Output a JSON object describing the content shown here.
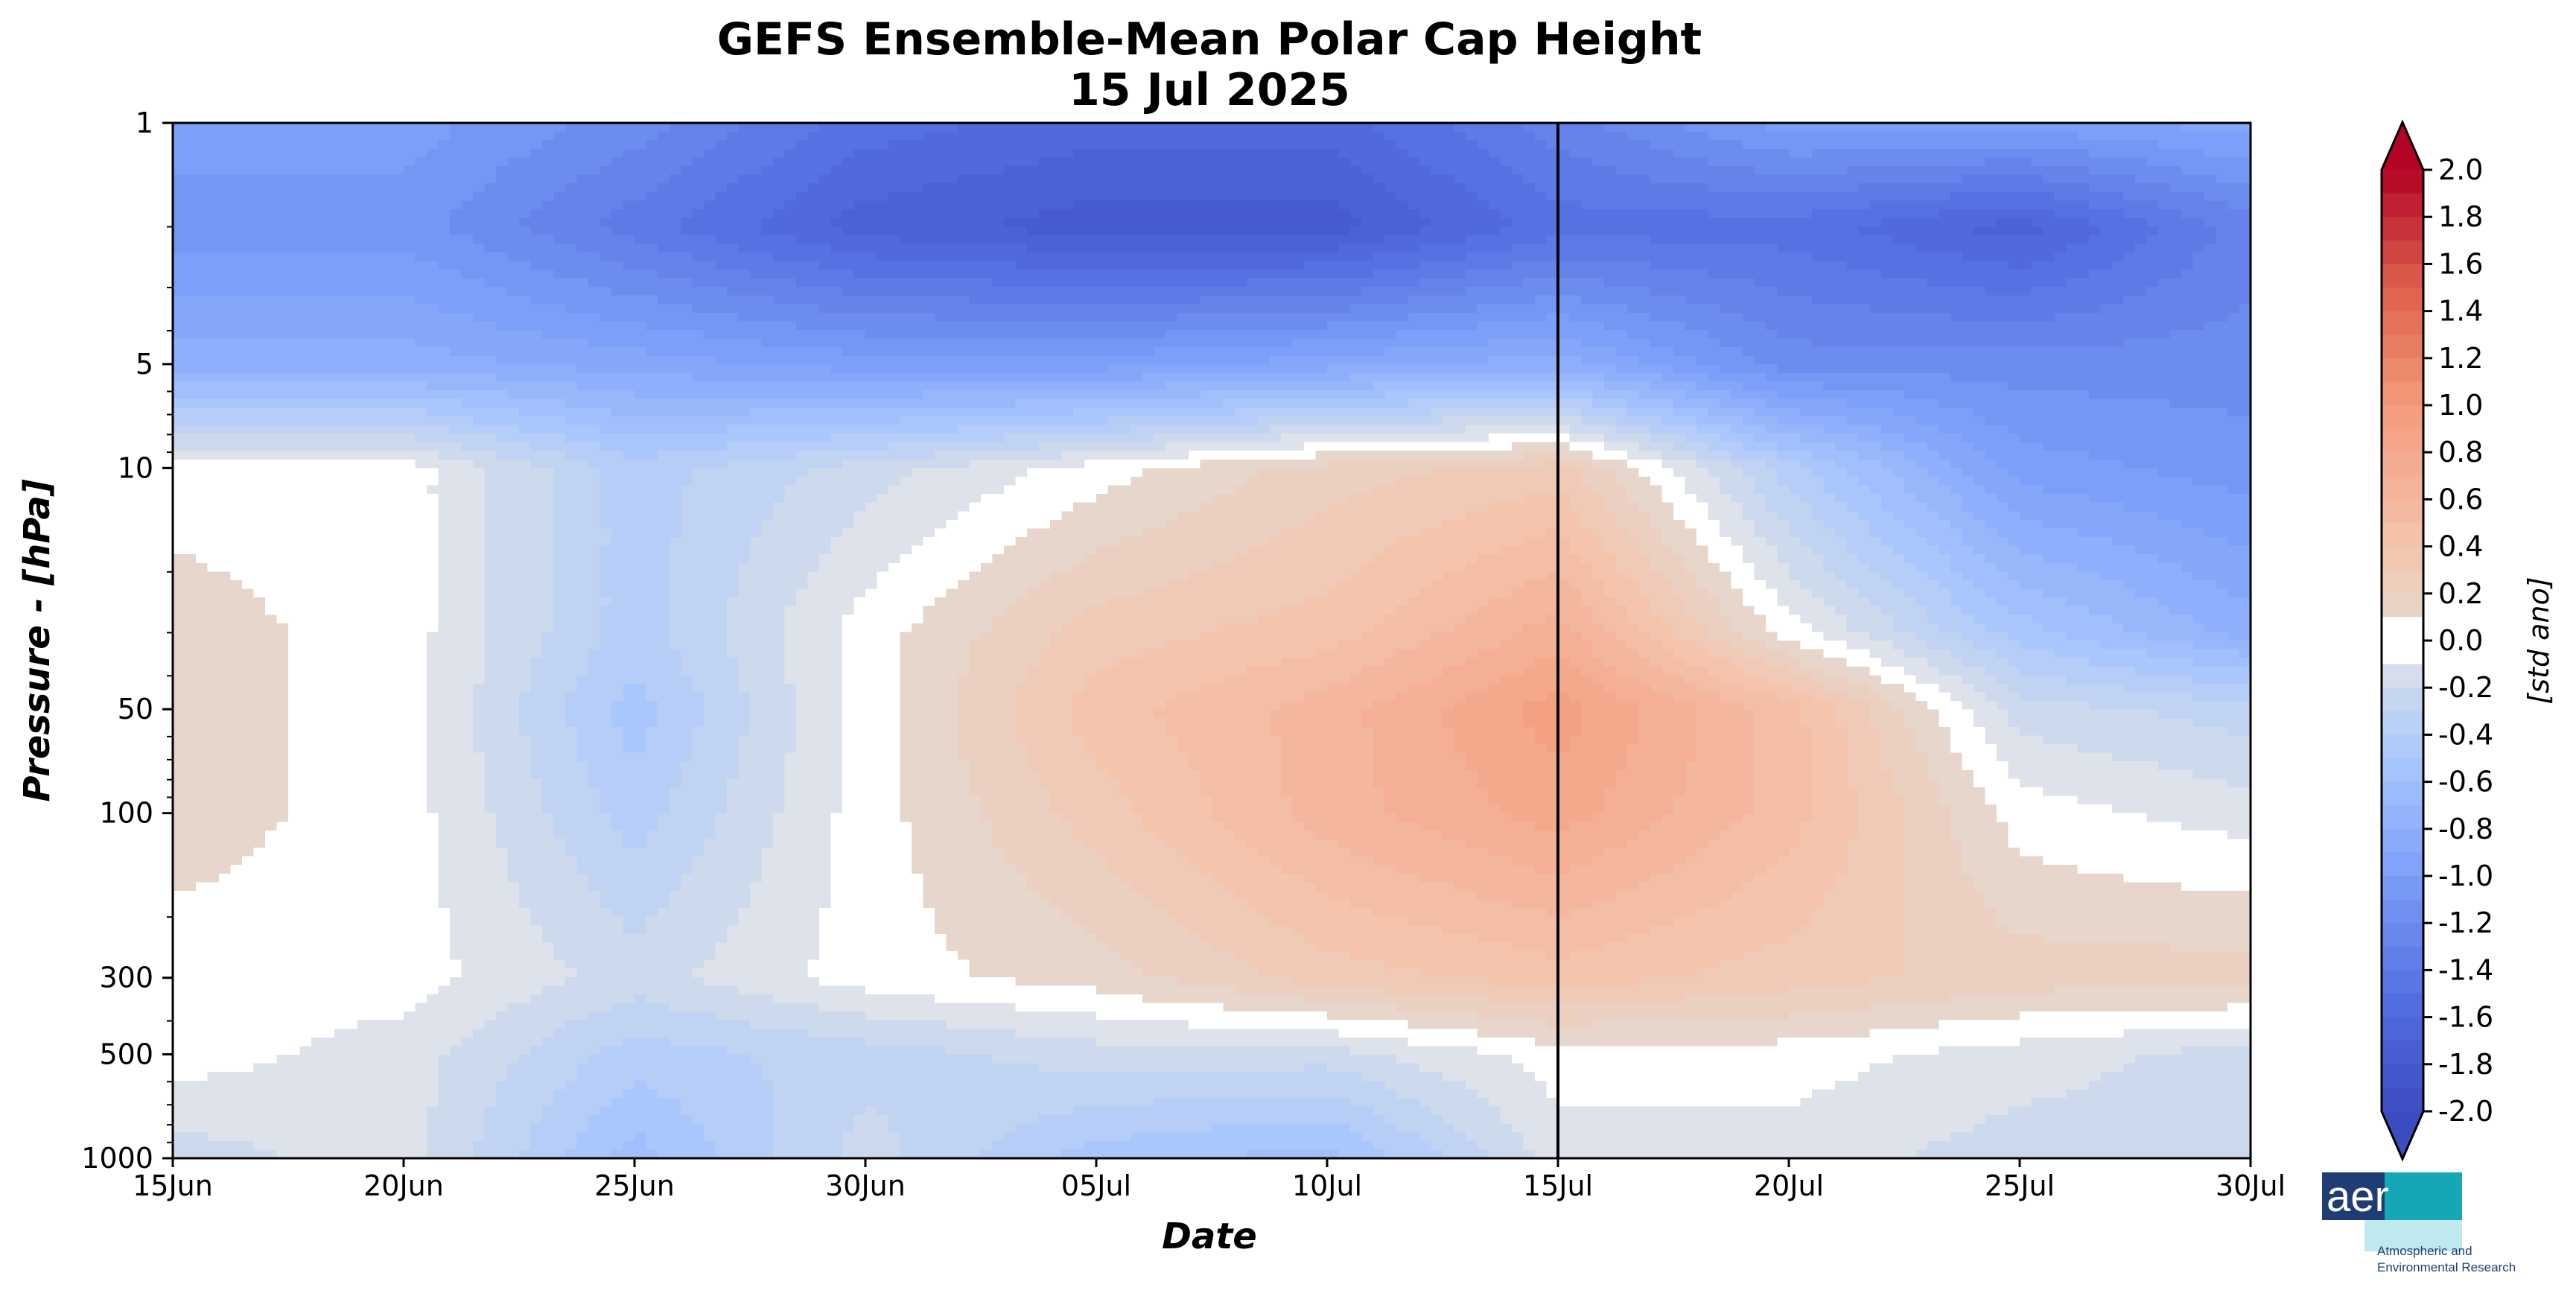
{
  "chart_data": {
    "type": "heatmap",
    "title": "GEFS Ensemble-Mean Polar Cap Height",
    "subtitle": "15 Jul 2025",
    "xlabel": "Date",
    "ylabel": "Pressure - [hPa]",
    "x_ticks": [
      "15Jun",
      "20Jun",
      "25Jun",
      "30Jun",
      "05Jul",
      "10Jul",
      "15Jul",
      "20Jul",
      "25Jul",
      "30Jul"
    ],
    "y_ticks": [
      "1",
      "5",
      "10",
      "50",
      "100",
      "300",
      "500",
      "1000"
    ],
    "y_tick_values": [
      1,
      5,
      10,
      50,
      100,
      300,
      500,
      1000
    ],
    "y_scale": "log",
    "y_inverted": true,
    "ylim": [
      1000,
      1
    ],
    "x_range": [
      "2025-06-15",
      "2025-07-30"
    ],
    "current_date_marker": "2025-07-15",
    "colorbar": {
      "label": "[std ano]",
      "range": [
        -2.0,
        2.0
      ],
      "step": 0.1,
      "extend": "both",
      "tick_labels": [
        "2.0",
        "1.8",
        "1.6",
        "1.4",
        "1.2",
        "1.0",
        "0.8",
        "0.6",
        "0.4",
        "0.2",
        "0.0",
        "-0.2",
        "-0.4",
        "-0.6",
        "-0.8",
        "-1.0",
        "-1.2",
        "-1.4",
        "-1.6",
        "-1.8",
        "-2.0"
      ],
      "tick_values": [
        2.0,
        1.8,
        1.6,
        1.4,
        1.2,
        1.0,
        0.8,
        0.6,
        0.4,
        0.2,
        0.0,
        -0.2,
        -0.4,
        -0.6,
        -0.8,
        -1.0,
        -1.2,
        -1.4,
        -1.6,
        -1.8,
        -2.0
      ],
      "colormap": "coolwarm",
      "color_max": "#b40426",
      "color_min": "#3b4cc0",
      "neutral": "#ffffff"
    },
    "field": {
      "days": [
        0,
        5,
        10,
        15,
        20,
        25,
        30,
        35,
        40,
        45
      ],
      "pressures_hpa": [
        1,
        2,
        5,
        10,
        30,
        50,
        100,
        300,
        500,
        1000
      ],
      "values": [
        [
          -1.0,
          -1.0,
          -1.2,
          -1.5,
          -1.6,
          -1.6,
          -1.3,
          -1.0,
          -1.0,
          -0.9
        ],
        [
          -1.1,
          -1.1,
          -1.4,
          -1.7,
          -1.8,
          -1.8,
          -1.5,
          -1.5,
          -1.7,
          -1.3
        ],
        [
          -0.8,
          -0.8,
          -0.9,
          -1.0,
          -1.0,
          -0.9,
          -0.8,
          -1.2,
          -1.2,
          -1.2
        ],
        [
          0.0,
          0.0,
          -0.4,
          -0.2,
          0.0,
          0.2,
          0.3,
          -0.4,
          -1.0,
          -1.1
        ],
        [
          0.1,
          0.0,
          -0.4,
          0.0,
          0.3,
          0.4,
          0.7,
          0.0,
          -0.5,
          -0.8
        ],
        [
          0.1,
          0.0,
          -0.5,
          0.0,
          0.4,
          0.6,
          0.9,
          0.5,
          -0.2,
          -0.3
        ],
        [
          0.1,
          0.0,
          -0.4,
          0.0,
          0.3,
          0.6,
          0.8,
          0.5,
          0.0,
          -0.1
        ],
        [
          0.0,
          0.0,
          -0.2,
          0.0,
          0.1,
          0.3,
          0.4,
          0.3,
          0.2,
          0.2
        ],
        [
          0.0,
          -0.1,
          -0.4,
          -0.3,
          -0.2,
          -0.2,
          0.0,
          0.0,
          -0.1,
          -0.2
        ],
        [
          -0.2,
          -0.1,
          -0.6,
          -0.2,
          -0.5,
          -0.6,
          -0.1,
          -0.1,
          -0.2,
          -0.2
        ]
      ]
    }
  },
  "logo": {
    "brand": "aer",
    "tagline_line1": "Atmospheric and",
    "tagline_line2": "Environmental Research",
    "brand_color": "#1f3d73",
    "accent_color": "#16a7b5"
  }
}
